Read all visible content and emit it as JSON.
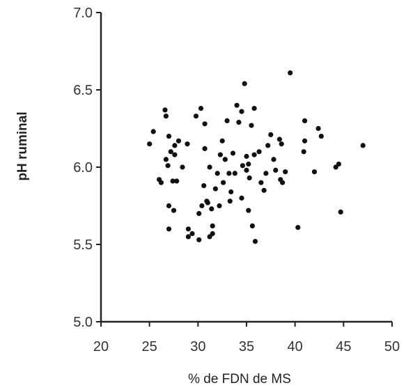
{
  "chart_data": {
    "type": "scatter",
    "title": "",
    "xlabel": "% de FDN de MS",
    "ylabel": "pH ruminal",
    "xlim": [
      20,
      50
    ],
    "ylim": [
      5.0,
      7.0
    ],
    "xticks": [
      20,
      25,
      30,
      35,
      40,
      45,
      50
    ],
    "xtick_labels": [
      "20",
      "25",
      "30",
      "35",
      "40",
      "45",
      "50"
    ],
    "yticks": [
      5.0,
      5.5,
      6.0,
      6.5,
      7.0
    ],
    "ytick_labels": [
      "5.0",
      "5.5",
      "6.0",
      "6.5",
      "7.0"
    ],
    "grid": false,
    "legend": "none",
    "marker_color": "#111111",
    "series": [
      {
        "points": [
          [
            25.0,
            6.15
          ],
          [
            25.4,
            6.23
          ],
          [
            26.0,
            5.92
          ],
          [
            26.2,
            5.9
          ],
          [
            26.6,
            6.37
          ],
          [
            26.7,
            6.33
          ],
          [
            26.7,
            6.05
          ],
          [
            27.0,
            6.2
          ],
          [
            26.9,
            6.01
          ],
          [
            27.2,
            6.1
          ],
          [
            27.6,
            6.14
          ],
          [
            27.0,
            5.75
          ],
          [
            27.5,
            5.72
          ],
          [
            27.0,
            5.6
          ],
          [
            27.6,
            6.08
          ],
          [
            27.8,
            5.91
          ],
          [
            28.0,
            6.17
          ],
          [
            28.4,
            6.0
          ],
          [
            27.4,
            5.91
          ],
          [
            28.9,
            6.15
          ],
          [
            29.0,
            5.55
          ],
          [
            29.4,
            5.57
          ],
          [
            29.0,
            5.6
          ],
          [
            29.8,
            6.33
          ],
          [
            30.1,
            5.53
          ],
          [
            30.3,
            6.38
          ],
          [
            30.4,
            5.75
          ],
          [
            30.7,
            6.28
          ],
          [
            30.7,
            6.12
          ],
          [
            30.1,
            5.7
          ],
          [
            30.6,
            5.88
          ],
          [
            31.2,
            6.0
          ],
          [
            30.9,
            5.78
          ],
          [
            31.4,
            5.73
          ],
          [
            31.2,
            5.55
          ],
          [
            31.5,
            5.62
          ],
          [
            31.8,
            5.86
          ],
          [
            31.5,
            5.57
          ],
          [
            31.0,
            5.77
          ],
          [
            32.0,
            5.96
          ],
          [
            32.2,
            5.75
          ],
          [
            32.5,
            6.17
          ],
          [
            32.3,
            6.08
          ],
          [
            32.6,
            5.9
          ],
          [
            32.8,
            6.05
          ],
          [
            33.0,
            6.3
          ],
          [
            33.2,
            5.96
          ],
          [
            33.4,
            5.84
          ],
          [
            33.3,
            5.78
          ],
          [
            33.6,
            6.09
          ],
          [
            33.8,
            5.96
          ],
          [
            34.0,
            6.4
          ],
          [
            34.2,
            6.29
          ],
          [
            34.5,
            5.8
          ],
          [
            34.5,
            6.36
          ],
          [
            34.8,
            6.54
          ],
          [
            34.6,
            6.01
          ],
          [
            35.0,
            6.07
          ],
          [
            35.0,
            5.98
          ],
          [
            35.2,
            5.72
          ],
          [
            35.3,
            5.93
          ],
          [
            35.2,
            6.02
          ],
          [
            35.5,
            6.27
          ],
          [
            35.8,
            6.08
          ],
          [
            35.6,
            5.62
          ],
          [
            35.9,
            5.52
          ],
          [
            35.8,
            6.38
          ],
          [
            36.3,
            6.1
          ],
          [
            36.5,
            5.9
          ],
          [
            36.8,
            5.85
          ],
          [
            37.0,
            5.96
          ],
          [
            37.2,
            6.14
          ],
          [
            37.5,
            6.21
          ],
          [
            37.8,
            6.05
          ],
          [
            38.0,
            5.98
          ],
          [
            38.4,
            6.18
          ],
          [
            38.6,
            6.15
          ],
          [
            38.5,
            5.92
          ],
          [
            38.7,
            5.9
          ],
          [
            39.0,
            5.97
          ],
          [
            39.5,
            6.61
          ],
          [
            40.3,
            5.61
          ],
          [
            40.9,
            6.1
          ],
          [
            41.0,
            6.3
          ],
          [
            41.0,
            6.17
          ],
          [
            42.0,
            5.97
          ],
          [
            42.4,
            6.25
          ],
          [
            42.7,
            6.2
          ],
          [
            44.2,
            6.0
          ],
          [
            44.5,
            6.02
          ],
          [
            44.7,
            5.71
          ],
          [
            47.0,
            6.14
          ]
        ]
      }
    ]
  }
}
